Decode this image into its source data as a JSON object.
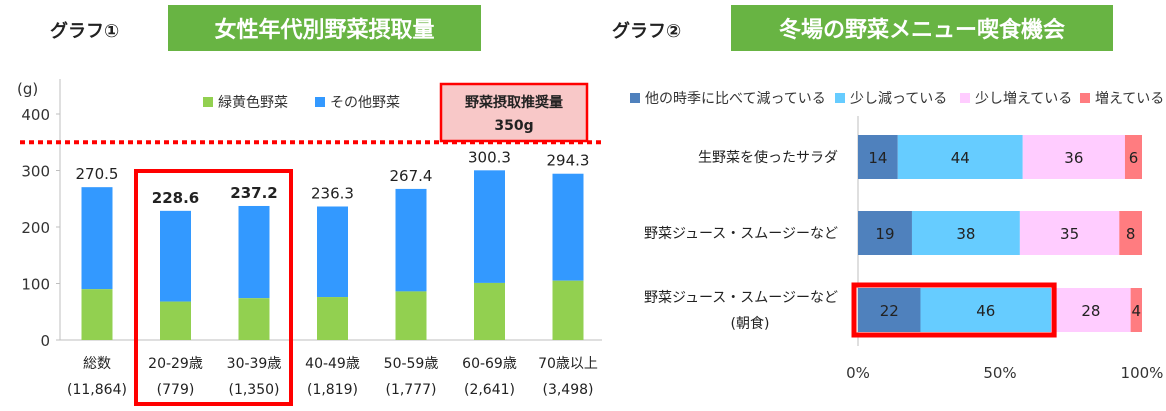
{
  "graph1": {
    "label": "グラフ①",
    "title": "女性年代別野菜摂取量"
  },
  "graph2": {
    "label": "グラフ②",
    "title": "冬場の野菜メニュー喫食機会"
  },
  "colors": {
    "title_bg": "#68b443",
    "green": "#92d050",
    "blue": "#3399ff",
    "highlight": "#ff0000",
    "rec_bg": "#f8c8c8",
    "s_dark": "#4f81bd",
    "s_light": "#66ccff",
    "s_pink": "#ffccff",
    "s_red": "#ff7c80"
  },
  "chart_data": [
    {
      "type": "bar",
      "unit": "(g)",
      "legend": [
        "緑黄色野菜",
        "その他野菜"
      ],
      "categories": [
        "総数",
        "20-29歳",
        "30-39歳",
        "40-49歳",
        "50-59歳",
        "60-69歳",
        "70歳以上"
      ],
      "counts": [
        "(11,864)",
        "(779)",
        "(1,350)",
        "(1,819)",
        "(1,777)",
        "(2,641)",
        "(3,498)"
      ],
      "series": [
        {
          "name": "緑黄色野菜",
          "values": [
            90,
            68,
            74,
            76,
            86,
            101,
            105
          ]
        },
        {
          "name": "その他野菜",
          "values": [
            180.5,
            160.6,
            163.2,
            160.3,
            181.4,
            199.3,
            189.3
          ]
        }
      ],
      "totals": [
        "270.5",
        "228.6",
        "237.2",
        "236.3",
        "267.4",
        "300.3",
        "294.3"
      ],
      "highlighted": [
        1,
        2
      ],
      "ylim": [
        0,
        400
      ],
      "yticks": [
        0,
        100,
        200,
        300,
        400
      ],
      "recommended": {
        "value": 350,
        "label_line1": "野菜摂取推奨量",
        "label_line2": "350g"
      }
    },
    {
      "type": "bar",
      "orientation": "horizontal",
      "stacked": true,
      "legend": [
        "他の時季に比べて減っている",
        "少し減っている",
        "少し増えている",
        "増えている"
      ],
      "categories": [
        [
          "生野菜を使ったサラダ"
        ],
        [
          "野菜ジュース・スムージーなど"
        ],
        [
          "野菜ジュース・スムージーなど",
          "(朝食)"
        ]
      ],
      "series": [
        {
          "name": "他の時季に比べて減っている",
          "values": [
            14,
            19,
            22
          ]
        },
        {
          "name": "少し減っている",
          "values": [
            44,
            38,
            46
          ]
        },
        {
          "name": "少し増えている",
          "values": [
            36,
            35,
            28
          ]
        },
        {
          "name": "増えている",
          "values": [
            6,
            8,
            4
          ]
        }
      ],
      "xticks": [
        "0%",
        "50%",
        "100%"
      ],
      "xlim": [
        0,
        100
      ],
      "highlight_row": 2
    }
  ]
}
